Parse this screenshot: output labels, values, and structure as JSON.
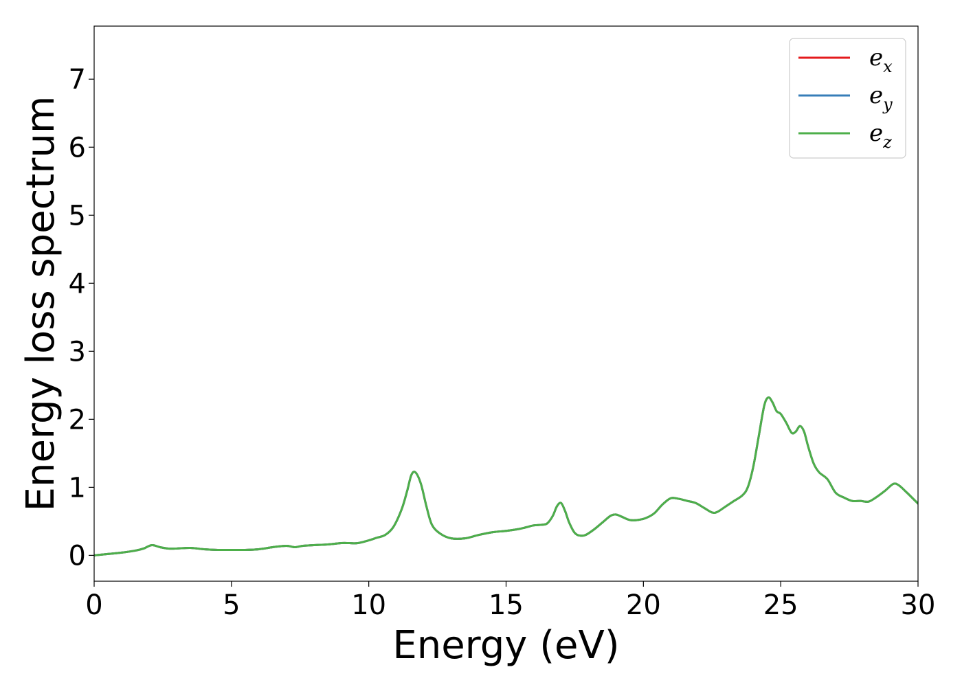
{
  "chart_data": {
    "type": "line",
    "title": "",
    "xlabel": "Energy (eV)",
    "ylabel": "Energy loss spectrum",
    "xlim": [
      0,
      30
    ],
    "ylim": [
      -0.38,
      7.78
    ],
    "xticks": [
      0,
      5,
      10,
      15,
      20,
      25,
      30
    ],
    "yticks": [
      0,
      1,
      2,
      3,
      4,
      5,
      6,
      7
    ],
    "grid": false,
    "legend_position": "top-right",
    "x": [
      0,
      0.5,
      1,
      1.5,
      1.8,
      2.1,
      2.4,
      2.7,
      3.0,
      3.5,
      4.0,
      4.5,
      5.0,
      5.5,
      6.0,
      6.5,
      7.0,
      7.3,
      7.6,
      8.0,
      8.5,
      9.0,
      9.3,
      9.6,
      10.0,
      10.3,
      10.6,
      10.9,
      11.2,
      11.4,
      11.55,
      11.7,
      11.9,
      12.1,
      12.3,
      12.6,
      13.0,
      13.5,
      14.0,
      14.5,
      15.0,
      15.5,
      15.8,
      16.0,
      16.3,
      16.5,
      16.7,
      16.85,
      17.0,
      17.15,
      17.3,
      17.5,
      17.7,
      17.9,
      18.2,
      18.5,
      18.8,
      19.0,
      19.2,
      19.5,
      19.8,
      20.1,
      20.4,
      20.7,
      21.0,
      21.3,
      21.6,
      21.9,
      22.2,
      22.5,
      22.7,
      23.0,
      23.3,
      23.6,
      23.8,
      24.0,
      24.2,
      24.4,
      24.55,
      24.7,
      24.85,
      25.0,
      25.2,
      25.4,
      25.55,
      25.7,
      25.85,
      26.0,
      26.2,
      26.4,
      26.7,
      27.0,
      27.3,
      27.6,
      27.9,
      28.2,
      28.5,
      28.8,
      29.1,
      29.3,
      29.6,
      30.0
    ],
    "series": [
      {
        "name": "e_x",
        "name_base": "e",
        "name_sub": "x",
        "color": "#e41a1c",
        "values": [
          0.0,
          0.02,
          0.04,
          0.07,
          0.1,
          0.15,
          0.12,
          0.1,
          0.1,
          0.11,
          0.09,
          0.08,
          0.08,
          0.08,
          0.09,
          0.12,
          0.14,
          0.12,
          0.14,
          0.15,
          0.16,
          0.18,
          0.18,
          0.18,
          0.22,
          0.26,
          0.3,
          0.42,
          0.68,
          0.95,
          1.18,
          1.22,
          1.05,
          0.72,
          0.45,
          0.32,
          0.25,
          0.25,
          0.3,
          0.34,
          0.36,
          0.39,
          0.42,
          0.44,
          0.45,
          0.47,
          0.58,
          0.72,
          0.77,
          0.65,
          0.48,
          0.33,
          0.29,
          0.3,
          0.38,
          0.48,
          0.58,
          0.6,
          0.57,
          0.52,
          0.52,
          0.55,
          0.62,
          0.75,
          0.84,
          0.83,
          0.8,
          0.77,
          0.7,
          0.63,
          0.64,
          0.72,
          0.8,
          0.88,
          1.0,
          1.3,
          1.75,
          2.2,
          2.32,
          2.25,
          2.12,
          2.08,
          1.95,
          1.8,
          1.82,
          1.9,
          1.82,
          1.6,
          1.35,
          1.22,
          1.12,
          0.92,
          0.85,
          0.8,
          0.8,
          0.79,
          0.86,
          0.95,
          1.05,
          1.03,
          0.92,
          0.76
        ]
      },
      {
        "name": "e_y",
        "name_base": "e",
        "name_sub": "y",
        "color": "#377eb8",
        "values": [
          0.0,
          0.02,
          0.04,
          0.07,
          0.1,
          0.15,
          0.12,
          0.1,
          0.1,
          0.11,
          0.09,
          0.08,
          0.08,
          0.08,
          0.09,
          0.12,
          0.14,
          0.12,
          0.14,
          0.15,
          0.16,
          0.18,
          0.18,
          0.18,
          0.22,
          0.26,
          0.3,
          0.42,
          0.68,
          0.95,
          1.18,
          1.22,
          1.05,
          0.72,
          0.45,
          0.32,
          0.25,
          0.25,
          0.3,
          0.34,
          0.36,
          0.39,
          0.42,
          0.44,
          0.45,
          0.47,
          0.58,
          0.72,
          0.77,
          0.65,
          0.48,
          0.33,
          0.29,
          0.3,
          0.38,
          0.48,
          0.58,
          0.6,
          0.57,
          0.52,
          0.52,
          0.55,
          0.62,
          0.75,
          0.84,
          0.83,
          0.8,
          0.77,
          0.7,
          0.63,
          0.64,
          0.72,
          0.8,
          0.88,
          1.0,
          1.3,
          1.75,
          2.2,
          2.32,
          2.25,
          2.12,
          2.08,
          1.95,
          1.8,
          1.82,
          1.9,
          1.82,
          1.6,
          1.35,
          1.22,
          1.12,
          0.92,
          0.85,
          0.8,
          0.8,
          0.79,
          0.86,
          0.95,
          1.05,
          1.03,
          0.92,
          0.76
        ]
      },
      {
        "name": "e_z",
        "name_base": "e",
        "name_sub": "z",
        "color": "#4daf4a",
        "values": [
          0.0,
          0.02,
          0.04,
          0.07,
          0.1,
          0.15,
          0.12,
          0.1,
          0.1,
          0.11,
          0.09,
          0.08,
          0.08,
          0.08,
          0.09,
          0.12,
          0.14,
          0.12,
          0.14,
          0.15,
          0.16,
          0.18,
          0.18,
          0.18,
          0.22,
          0.26,
          0.3,
          0.42,
          0.68,
          0.95,
          1.18,
          1.22,
          1.05,
          0.72,
          0.45,
          0.32,
          0.25,
          0.25,
          0.3,
          0.34,
          0.36,
          0.39,
          0.42,
          0.44,
          0.45,
          0.47,
          0.58,
          0.72,
          0.77,
          0.65,
          0.48,
          0.33,
          0.29,
          0.3,
          0.38,
          0.48,
          0.58,
          0.6,
          0.57,
          0.52,
          0.52,
          0.55,
          0.62,
          0.75,
          0.84,
          0.83,
          0.8,
          0.77,
          0.7,
          0.63,
          0.64,
          0.72,
          0.8,
          0.88,
          1.0,
          1.3,
          1.75,
          2.2,
          2.32,
          2.25,
          2.12,
          2.08,
          1.95,
          1.8,
          1.82,
          1.9,
          1.82,
          1.6,
          1.35,
          1.22,
          1.12,
          0.92,
          0.85,
          0.8,
          0.8,
          0.79,
          0.86,
          0.95,
          1.05,
          1.03,
          0.92,
          0.76
        ]
      }
    ]
  }
}
